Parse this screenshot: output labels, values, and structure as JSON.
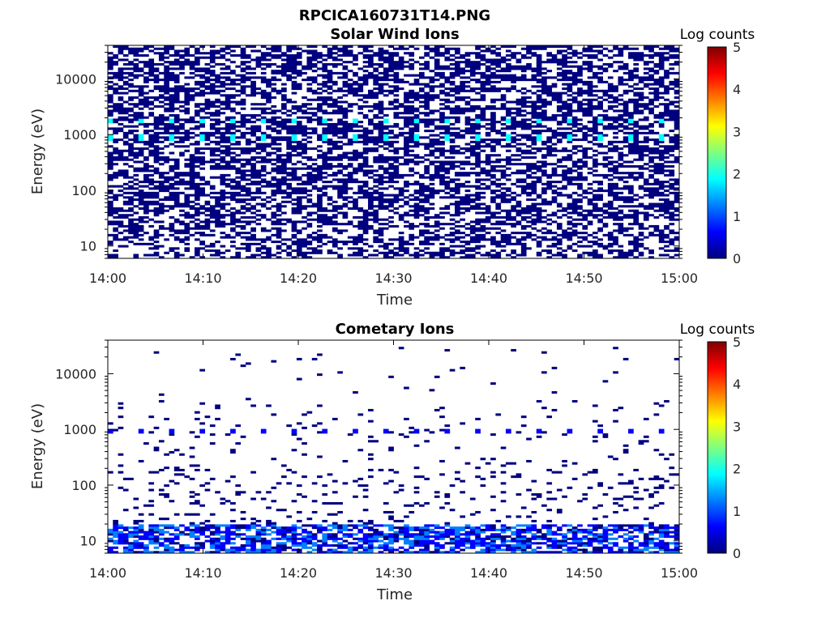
{
  "figure": {
    "filename": "RPCICA160731T14.PNG"
  },
  "colormap": [
    "#00007f",
    "#0000ff",
    "#007fff",
    "#00ffff",
    "#7fff7f",
    "#ffff00",
    "#ff7f00",
    "#ff0000",
    "#7f0000"
  ],
  "chart_data": [
    {
      "type": "heatmap",
      "title": "Solar Wind Ions",
      "xlabel": "Time",
      "ylabel": "Energy (eV)",
      "x_range": [
        "14:00",
        "15:00"
      ],
      "x_ticks": [
        "14:00",
        "14:10",
        "14:20",
        "14:30",
        "14:40",
        "14:50",
        "15:00"
      ],
      "y_scale": "log",
      "y_range": [
        6,
        40000
      ],
      "y_ticks": [
        {
          "label": "10",
          "value": 10
        },
        {
          "label": "100",
          "value": 100
        },
        {
          "label": "1000",
          "value": 1000
        },
        {
          "label": "10000",
          "value": 10000
        }
      ],
      "colorbar": {
        "label": "Log counts",
        "range": [
          0,
          5
        ],
        "ticks": [
          "0",
          "1",
          "2",
          "3",
          "4",
          "5"
        ]
      },
      "description_data": {
        "background_level": 0,
        "background_fill_fraction_high_energy": 0.55,
        "background_fill_fraction_low_energy": 0.45,
        "periodic_peak_energy_ev": [
          850,
          1800
        ],
        "periodic_peak_log_counts": 1.9,
        "periodic_peak_interval_min": 3.2,
        "periodic_peak_start_min": 0.2
      }
    },
    {
      "type": "heatmap",
      "title": "Cometary Ions",
      "xlabel": "Time",
      "ylabel": "Energy (eV)",
      "x_range": [
        "14:00",
        "15:00"
      ],
      "x_ticks": [
        "14:00",
        "14:10",
        "14:20",
        "14:30",
        "14:40",
        "14:50",
        "15:00"
      ],
      "y_scale": "log",
      "y_range": [
        6,
        40000
      ],
      "y_ticks": [
        {
          "label": "10",
          "value": 10
        },
        {
          "label": "100",
          "value": 100
        },
        {
          "label": "1000",
          "value": 1000
        },
        {
          "label": "10000",
          "value": 10000
        }
      ],
      "colorbar": {
        "label": "Log counts",
        "range": [
          0,
          5
        ],
        "ticks": [
          "0",
          "1",
          "2",
          "3",
          "4",
          "5"
        ]
      },
      "description_data": {
        "low_energy_band_ev": [
          6,
          20
        ],
        "low_energy_log_counts_range": [
          0,
          1.4
        ],
        "sparse_counts_energy_ev": [
          20,
          30000
        ],
        "sparse_log_counts": 0.3,
        "periodic_peak_energy_ev": 950,
        "periodic_peak_log_counts": 0.7,
        "periodic_peak_interval_min": 3.2,
        "periodic_peak_start_min": 0.2
      }
    }
  ]
}
